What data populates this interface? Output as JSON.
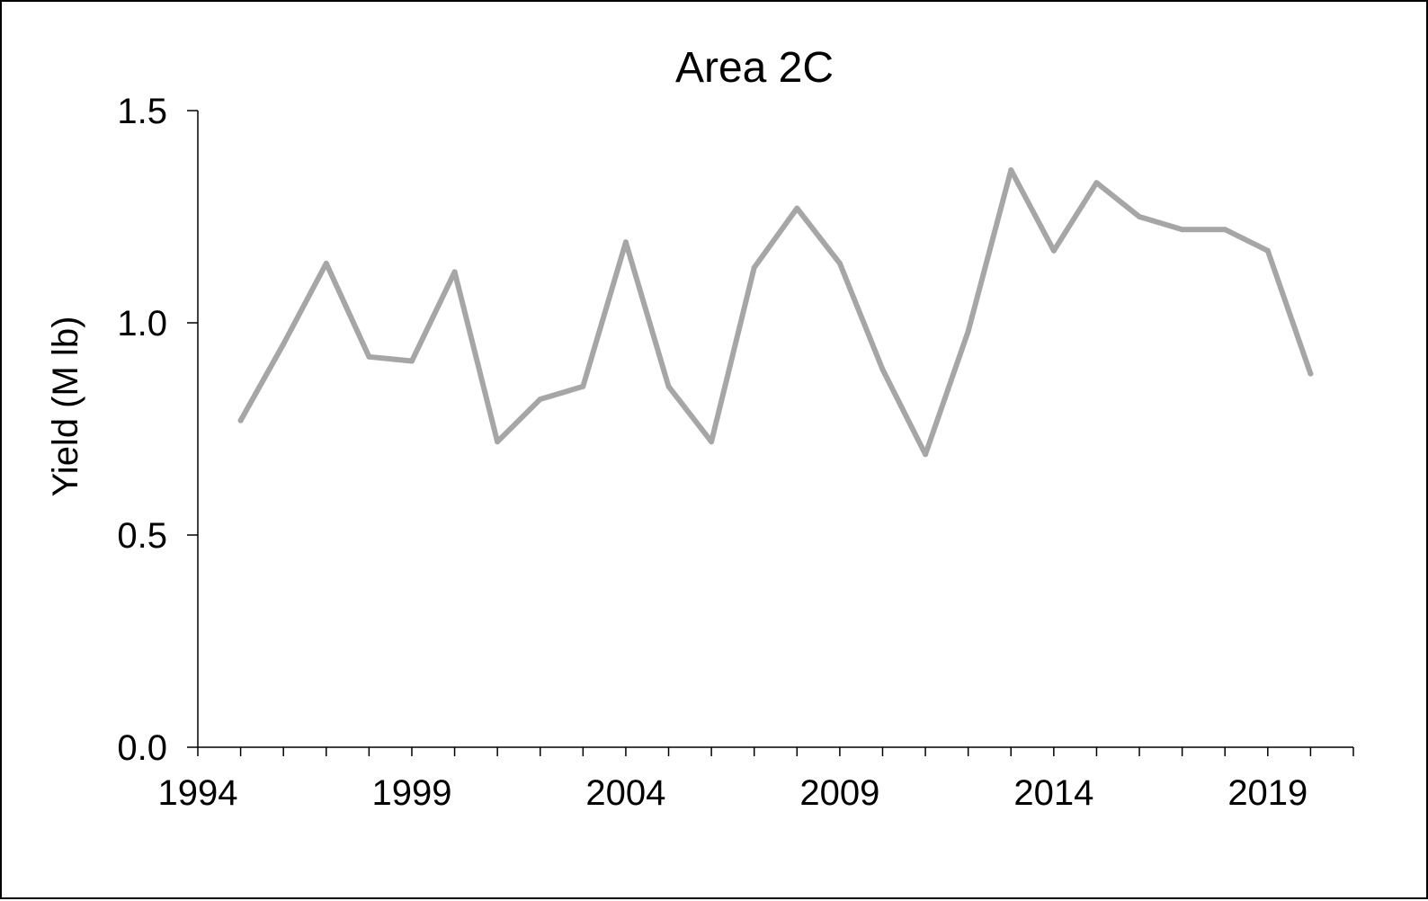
{
  "chart_data": {
    "type": "line",
    "title": "Area 2C",
    "xlabel": "",
    "ylabel": "Yield (M lb)",
    "xlim": [
      1994,
      2021
    ],
    "ylim": [
      0.0,
      1.5
    ],
    "x_tick_labels": [
      "1994",
      "1999",
      "2004",
      "2009",
      "2014",
      "2019"
    ],
    "y_tick_labels": [
      "0.0",
      "0.5",
      "1.0",
      "1.5"
    ],
    "grid": false,
    "legend": "none",
    "x": [
      1995,
      1996,
      1997,
      1998,
      1999,
      2000,
      2001,
      2002,
      2003,
      2004,
      2005,
      2006,
      2007,
      2008,
      2009,
      2010,
      2011,
      2012,
      2013,
      2014,
      2015,
      2016,
      2017,
      2018,
      2019,
      2020
    ],
    "series": [
      {
        "values": [
          0.77,
          0.95,
          1.14,
          0.92,
          0.91,
          1.12,
          0.72,
          0.82,
          0.85,
          1.19,
          0.85,
          0.72,
          1.13,
          1.27,
          1.14,
          0.89,
          0.69,
          0.98,
          1.36,
          1.17,
          1.33,
          1.25,
          1.22,
          1.22,
          1.17,
          0.88
        ],
        "color": "#a6a6a6"
      }
    ],
    "axis_color": "#000000"
  }
}
